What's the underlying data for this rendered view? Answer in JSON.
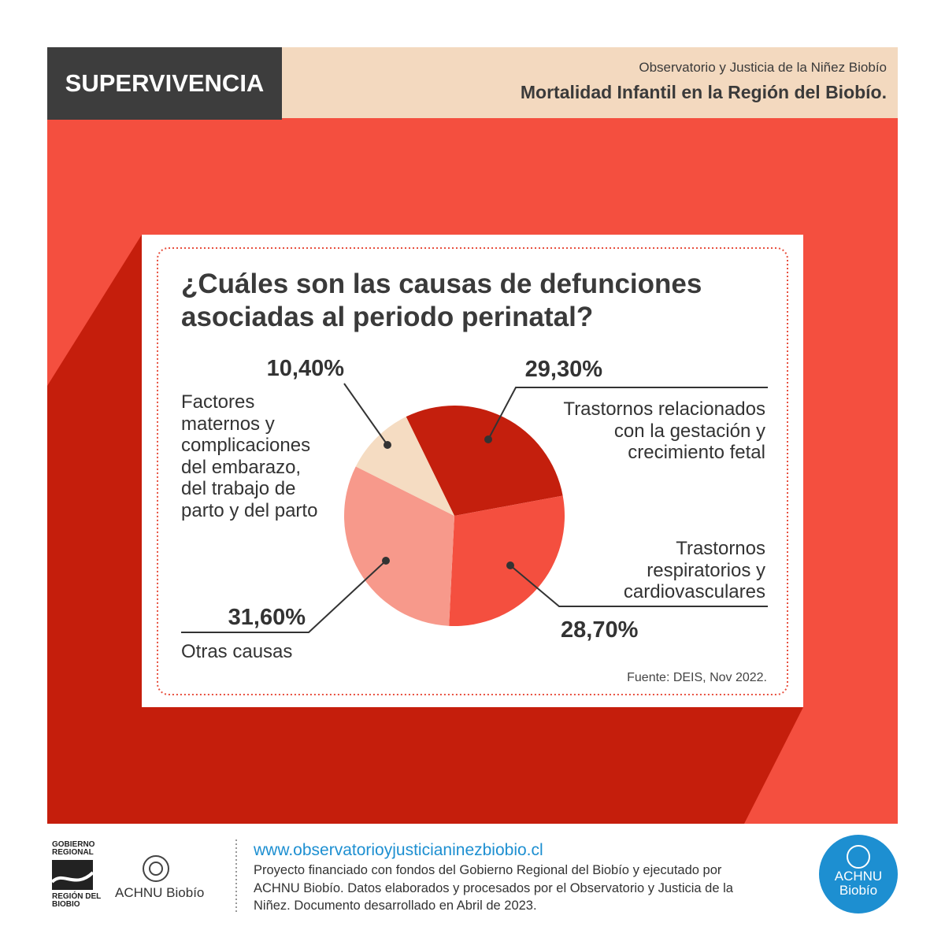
{
  "header": {
    "section": "SUPERVIVENCIA",
    "organization": "Observatorio y Justicia de la Niñez Biobío",
    "title": "Mortalidad Infantil en la Región del Biobío."
  },
  "chart_data": {
    "type": "pie",
    "title": "¿Cuáles son las  causas de defunciones\nasociadas al periodo perinatal?",
    "categories": [
      "Trastornos relacionados\ncon la gestación y\ncrecimiento fetal",
      "Trastornos\nrespiratorios y\ncardiovasculares",
      "Otras causas",
      "Factores\nmaternos y\ncomplicaciones\ndel embarazo,\ndel trabajo de\nparto y del parto"
    ],
    "values": [
      29.3,
      28.7,
      31.6,
      10.4
    ],
    "value_labels": [
      "29,30%",
      "28,70%",
      "31,60%",
      "10,40%"
    ],
    "colors": [
      "#c41f0d",
      "#f44f3f",
      "#f7998b",
      "#f5dcc2"
    ],
    "source": "Fuente: DEIS, Nov 2022."
  },
  "footer": {
    "url": "www.observatorioyjusticianinezbiobio.cl",
    "note": "Proyecto financiado con fondos del Gobierno Regional del Biobío y ejecutado por\nACHNU Biobío. Datos elaborados y procesados por el Observatorio y Justicia de la\nNiñez. Documento desarrollado en Abril de 2023.",
    "logo_gobierno_top": "GOBIERNO\nREGIONAL",
    "logo_gobierno_bottom": "REGIÓN DEL\nBIOBIO",
    "logo_achnu": "ACHNU Biobío",
    "badge_achnu": "ACHNU\nBiobío"
  }
}
